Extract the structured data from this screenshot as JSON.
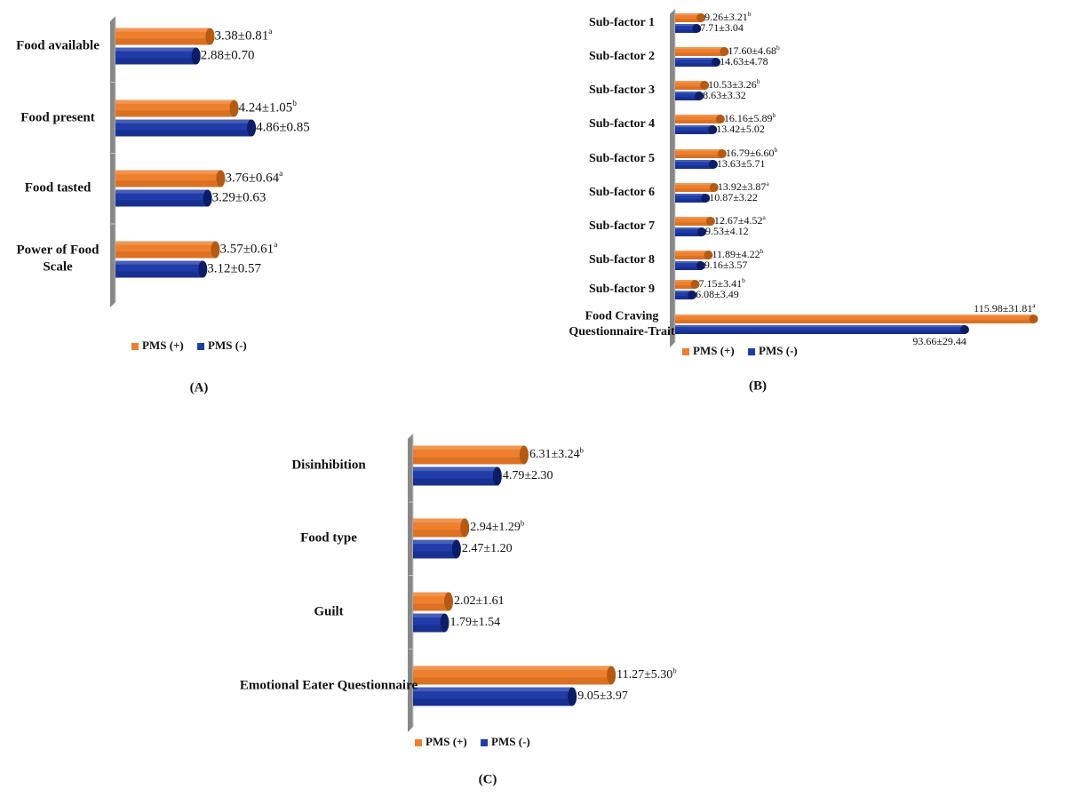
{
  "colors": {
    "pms_pos": "#ee7f2d",
    "pms_pos_dark": "#b45a12",
    "pms_neg": "#1f3ca8",
    "pms_neg_dark": "#0c1d66",
    "axis": "#c8c8c8"
  },
  "legend": {
    "pos": "PMS (+)",
    "neg": "PMS (-)"
  },
  "chart_data": [
    {
      "type": "bar",
      "orientation": "horizontal",
      "label": "(A)",
      "legend_position": "bottom",
      "series": [
        {
          "name": "PMS (+)"
        },
        {
          "name": "PMS (-)"
        }
      ],
      "categories": [
        {
          "name": "Food available",
          "pos": 3.38,
          "pos_label": "3.38±0.81",
          "pos_sup": "a",
          "neg": 2.88,
          "neg_label": "2.88±0.70",
          "neg_sup": ""
        },
        {
          "name": "Food present",
          "pos": 4.24,
          "pos_label": "4.24±1.05",
          "pos_sup": "b",
          "neg": 4.86,
          "neg_label": "4.86±0.85",
          "neg_sup": ""
        },
        {
          "name": "Food tasted",
          "pos": 3.76,
          "pos_label": "3.76±0.64",
          "pos_sup": "a",
          "neg": 3.29,
          "neg_label": "3.29±0.63",
          "neg_sup": ""
        },
        {
          "name": "Power of Food Scale",
          "pos": 3.57,
          "pos_label": "3.57±0.61",
          "pos_sup": "a",
          "neg": 3.12,
          "neg_label": "3.12±0.57",
          "neg_sup": ""
        }
      ]
    },
    {
      "type": "bar",
      "orientation": "horizontal",
      "label": "(B)",
      "legend_position": "bottom",
      "series": [
        {
          "name": "PMS (+)"
        },
        {
          "name": "PMS (-)"
        }
      ],
      "categories": [
        {
          "name": "Sub-factor 1",
          "pos": 9.26,
          "pos_label": "9.26±3.21",
          "pos_sup": "b",
          "neg": 7.71,
          "neg_label": "7.71±3.04",
          "neg_sup": ""
        },
        {
          "name": "Sub-factor 2",
          "pos": 17.6,
          "pos_label": "17.60±4.68",
          "pos_sup": "b",
          "neg": 14.63,
          "neg_label": "14.63±4.78",
          "neg_sup": ""
        },
        {
          "name": "Sub-factor 3",
          "pos": 10.53,
          "pos_label": "10.53±3.26",
          "pos_sup": "b",
          "neg": 8.63,
          "neg_label": "8.63±3.32",
          "neg_sup": ""
        },
        {
          "name": "Sub-factor 4",
          "pos": 16.16,
          "pos_label": "16.16±5.89",
          "pos_sup": "b",
          "neg": 13.42,
          "neg_label": "13.42±5.02",
          "neg_sup": ""
        },
        {
          "name": "Sub-factor 5",
          "pos": 16.79,
          "pos_label": "16.79±6.60",
          "pos_sup": "b",
          "neg": 13.63,
          "neg_label": "13.63±5.71",
          "neg_sup": ""
        },
        {
          "name": "Sub-factor 6",
          "pos": 13.92,
          "pos_label": "13.92±3.87",
          "pos_sup": "a",
          "neg": 10.87,
          "neg_label": "10.87±3.22",
          "neg_sup": ""
        },
        {
          "name": "Sub-factor 7",
          "pos": 12.67,
          "pos_label": "12.67±4.52",
          "pos_sup": "a",
          "neg": 9.53,
          "neg_label": "9.53±4.12",
          "neg_sup": ""
        },
        {
          "name": "Sub-factor 8",
          "pos": 11.89,
          "pos_label": "11.89±4.22",
          "pos_sup": "b",
          "neg": 9.16,
          "neg_label": "9.16±3.57",
          "neg_sup": ""
        },
        {
          "name": "Sub-factor 9",
          "pos": 7.15,
          "pos_label": "7.15±3.41",
          "pos_sup": "b",
          "neg": 6.08,
          "neg_label": "6.08±3.49",
          "neg_sup": ""
        },
        {
          "name": "Food Craving Questionnaire-Trait",
          "pos": 115.98,
          "pos_label": "115.98±31.81",
          "pos_sup": "a",
          "neg": 93.66,
          "neg_label": "93.66±29.44",
          "neg_sup": ""
        }
      ]
    },
    {
      "type": "bar",
      "orientation": "horizontal",
      "label": "(C)",
      "legend_position": "bottom",
      "series": [
        {
          "name": "PMS (+)"
        },
        {
          "name": "PMS (-)"
        }
      ],
      "categories": [
        {
          "name": "Disinhibition",
          "pos": 6.31,
          "pos_label": "6.31±3.24",
          "pos_sup": "b",
          "neg": 4.79,
          "neg_label": "4.79±2.30",
          "neg_sup": ""
        },
        {
          "name": "Food type",
          "pos": 2.94,
          "pos_label": "2.94±1.29",
          "pos_sup": "b",
          "neg": 2.47,
          "neg_label": "2.47±1.20",
          "neg_sup": ""
        },
        {
          "name": "Guilt",
          "pos": 2.02,
          "pos_label": "2.02±1.61",
          "pos_sup": "",
          "neg": 1.79,
          "neg_label": "1.79±1.54",
          "neg_sup": ""
        },
        {
          "name": "Emotional Eater Questionnaire",
          "pos": 11.27,
          "pos_label": "11.27±5.30",
          "pos_sup": "b",
          "neg": 9.05,
          "neg_label": "9.05±3.97",
          "neg_sup": ""
        }
      ]
    }
  ]
}
